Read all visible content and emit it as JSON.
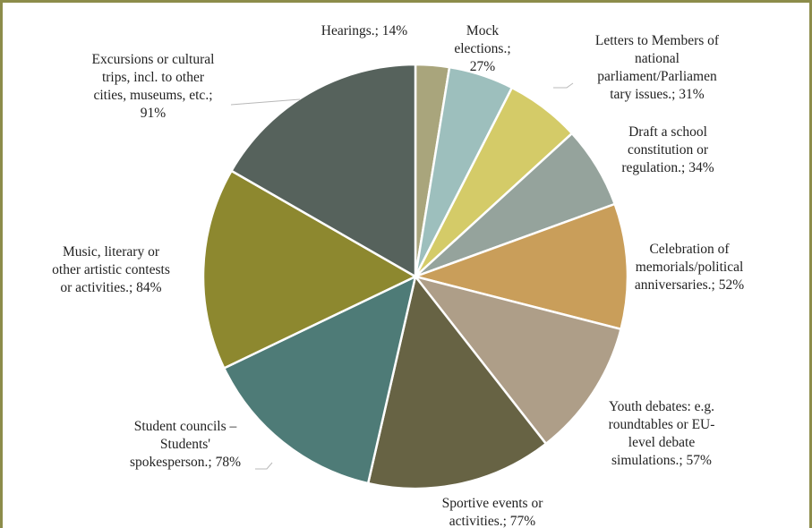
{
  "chart_data": {
    "type": "pie",
    "title": "",
    "unit": "%",
    "slices": [
      {
        "label": "Hearings.; 14%",
        "value": 14,
        "color": "#a9a57c"
      },
      {
        "label": "Mock elections.; 27%",
        "value": 27,
        "color": "#9dbfbd"
      },
      {
        "label": "Letters to Members of national parliament/Parliamentary issues.; 31%",
        "value": 31,
        "color": "#d4cb68"
      },
      {
        "label": "Draft a school constitution or regulation.; 34%",
        "value": 34,
        "color": "#95a39c"
      },
      {
        "label": "Celebration of memorials/political anniversaries.; 52%",
        "value": 52,
        "color": "#c99e5a"
      },
      {
        "label": "Youth debates: e.g. roundtables or EU-level debate simulations.; 57%",
        "value": 57,
        "color": "#ae9e88"
      },
      {
        "label": "Sportive events or activities.; 77%",
        "value": 77,
        "color": "#676344"
      },
      {
        "label": "Student councils – Students' spokesperson.; 78%",
        "value": 78,
        "color": "#4e7b77"
      },
      {
        "label": "Music, literary or other artistic contests or activities.; 84%",
        "value": 84,
        "color": "#8d882f"
      },
      {
        "label": "Excursions or cultural trips, incl. to other cities, museums, etc.; 91%",
        "value": 91,
        "color": "#56625c"
      }
    ]
  }
}
